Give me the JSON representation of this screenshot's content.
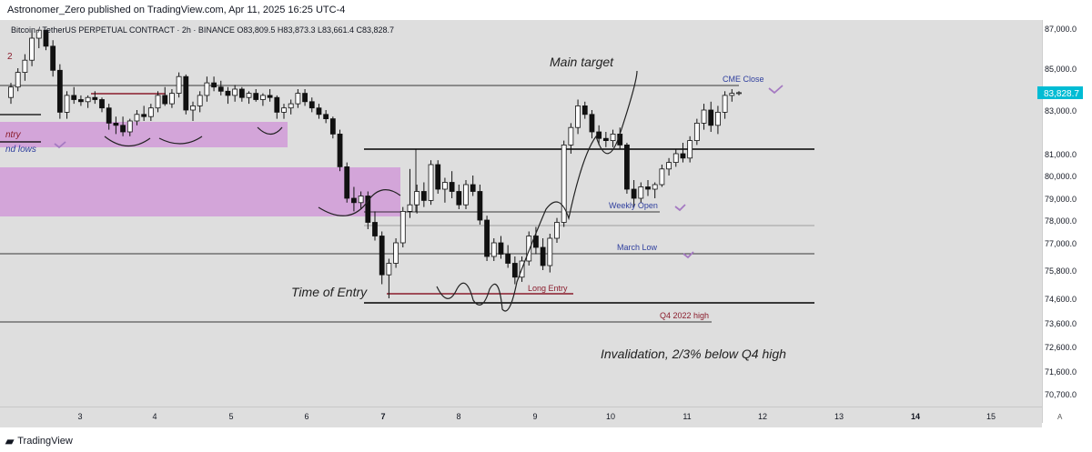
{
  "header": {
    "publisher_line": "Astronomer_Zero published on TradingView.com, Apr 11, 2025 16:25 UTC-4"
  },
  "legend": {
    "text": "Bitcoin / TetherUS PERPETUAL CONTRACT · 2h · BINANCE  O83,809.5  H83,873.3  L83,661.4  C83,828.7"
  },
  "footer": {
    "logo_text": "TradingView"
  },
  "price_axis": {
    "labels": [
      "87,000.0",
      "85,000.0",
      "83,000.0",
      "81,000.0",
      "80,000.0",
      "79,000.0",
      "78,000.0",
      "77,000.0",
      "75,800.0",
      "74,600.0",
      "73,600.0",
      "72,600.0",
      "71,600.0",
      "70,700.0"
    ],
    "last_price_label": "83,828.7",
    "last_price_color": "#00bcd4"
  },
  "time_axis": {
    "labels": [
      "3",
      "4",
      "5",
      "6",
      "7",
      "8",
      "9",
      "10",
      "11",
      "12",
      "13",
      "14",
      "15"
    ],
    "bold": [
      "7",
      "14"
    ],
    "corner_label": "A"
  },
  "annotations": {
    "main_target": "Main target",
    "time_of_entry": "Time of Entry",
    "invalidation": "Invalidation, 2/3% below Q4 high",
    "cme_close": "CME Close",
    "weekly_open": "Weekly Open",
    "march_low": "March Low",
    "long_entry": "Long Entry",
    "q4_high": "Q4 2022 high",
    "entry_cut": "ntry",
    "lows_cut": "nd lows",
    "two_cut": "2"
  },
  "colors": {
    "zone_fill": "#d19bd8",
    "level_line": "#000000",
    "label_blue": "#2f3f9e",
    "label_maroon": "#8a1c2c",
    "check_purple": "#a57ac2",
    "candle": "#111111"
  },
  "chart_data": {
    "type": "candlestick",
    "symbol": "Bitcoin / TetherUS PERPETUAL CONTRACT",
    "timeframe": "2h",
    "exchange": "BINANCE",
    "ohlc": {
      "open": 83809.5,
      "high": 83873.3,
      "low": 83661.4,
      "close": 83828.7
    },
    "x_ticks": [
      "3",
      "4",
      "5",
      "6",
      "7",
      "8",
      "9",
      "10",
      "11",
      "12",
      "13",
      "14",
      "15"
    ],
    "y_ticks": [
      87000,
      85000,
      83000,
      81000,
      80000,
      79000,
      78000,
      77000,
      75800,
      74600,
      73600,
      72600,
      71600,
      70700
    ],
    "levels": [
      {
        "label": "CME Close",
        "price": 84650
      },
      {
        "label": "",
        "price": 81200
      },
      {
        "label": "Weekly Open",
        "price": 78400
      },
      {
        "label": "",
        "price": 77800
      },
      {
        "label": "March Low",
        "price": 76500
      },
      {
        "label": "Long Entry",
        "price": 74800
      },
      {
        "label": "",
        "price": 74600
      },
      {
        "label": "Q4 2022 high",
        "price": 73650
      }
    ],
    "candles": [
      [
        83600,
        84300,
        83300,
        84100
      ],
      [
        84100,
        85000,
        83900,
        84800
      ],
      [
        84800,
        85700,
        84400,
        85400
      ],
      [
        85400,
        86900,
        85100,
        86500
      ],
      [
        86500,
        87500,
        86000,
        87100
      ],
      [
        87100,
        87300,
        85900,
        86100
      ],
      [
        86100,
        86400,
        84600,
        84900
      ],
      [
        84900,
        85200,
        82600,
        82900
      ],
      [
        82900,
        83900,
        82600,
        83700
      ],
      [
        83700,
        84100,
        83300,
        83500
      ],
      [
        83500,
        83700,
        83200,
        83400
      ],
      [
        83400,
        83700,
        83100,
        83600
      ],
      [
        83600,
        83900,
        83300,
        83500
      ],
      [
        83500,
        83600,
        82900,
        83100
      ],
      [
        83100,
        83300,
        82100,
        82400
      ],
      [
        82400,
        82700,
        81900,
        82300
      ],
      [
        82300,
        82700,
        81800,
        82000
      ],
      [
        82000,
        82600,
        81800,
        82500
      ],
      [
        82500,
        83000,
        82300,
        82800
      ],
      [
        82800,
        83200,
        82500,
        82700
      ],
      [
        82700,
        83300,
        82500,
        83100
      ],
      [
        83100,
        83900,
        82900,
        83700
      ],
      [
        83700,
        84100,
        83200,
        83300
      ],
      [
        83300,
        84000,
        83100,
        83800
      ],
      [
        83800,
        84800,
        83600,
        84600
      ],
      [
        84600,
        84700,
        82800,
        83000
      ],
      [
        83000,
        83400,
        82500,
        83200
      ],
      [
        83200,
        83900,
        82900,
        83700
      ],
      [
        83700,
        84600,
        83400,
        84300
      ],
      [
        84300,
        84600,
        83900,
        84100
      ],
      [
        84100,
        84400,
        83700,
        83900
      ],
      [
        83900,
        84100,
        83300,
        83700
      ],
      [
        83700,
        84200,
        83400,
        84000
      ],
      [
        84000,
        84100,
        83400,
        83600
      ],
      [
        83600,
        83900,
        83300,
        83800
      ],
      [
        83800,
        84000,
        83400,
        83500
      ],
      [
        83500,
        83800,
        83200,
        83700
      ],
      [
        83700,
        84000,
        83400,
        83600
      ],
      [
        83600,
        83700,
        82600,
        82900
      ],
      [
        82900,
        83300,
        82600,
        83100
      ],
      [
        83100,
        83500,
        82800,
        83300
      ],
      [
        83300,
        84000,
        83100,
        83800
      ],
      [
        83800,
        84000,
        83200,
        83400
      ],
      [
        83400,
        83600,
        82900,
        83100
      ],
      [
        83100,
        83300,
        82600,
        82800
      ],
      [
        82800,
        83000,
        82400,
        82600
      ],
      [
        82600,
        82700,
        81700,
        81900
      ],
      [
        81900,
        82100,
        80200,
        80400
      ],
      [
        80400,
        80600,
        78800,
        79000
      ],
      [
        79000,
        79500,
        78400,
        78800
      ],
      [
        78800,
        79300,
        78500,
        79100
      ],
      [
        79100,
        79300,
        77600,
        77900
      ],
      [
        77900,
        78400,
        77100,
        77300
      ],
      [
        77300,
        77500,
        75200,
        75600
      ],
      [
        75600,
        76300,
        74600,
        76100
      ],
      [
        76100,
        77200,
        75900,
        77000
      ],
      [
        77000,
        78600,
        76800,
        78400
      ],
      [
        78400,
        80300,
        78100,
        78700
      ],
      [
        78700,
        79600,
        78300,
        79300
      ],
      [
        79300,
        79700,
        78600,
        78900
      ],
      [
        78900,
        80700,
        78700,
        80500
      ],
      [
        80500,
        80700,
        79200,
        79400
      ],
      [
        79400,
        79900,
        78800,
        79700
      ],
      [
        79700,
        80200,
        79000,
        79300
      ],
      [
        79300,
        79600,
        78500,
        78700
      ],
      [
        78700,
        79800,
        78500,
        79600
      ],
      [
        79600,
        80000,
        79100,
        79300
      ],
      [
        79300,
        79600,
        77800,
        78000
      ],
      [
        78000,
        78200,
        76200,
        76400
      ],
      [
        76400,
        77200,
        76200,
        77000
      ],
      [
        77000,
        77300,
        76300,
        76500
      ],
      [
        76500,
        76900,
        75900,
        76100
      ],
      [
        76100,
        76400,
        75200,
        75500
      ],
      [
        75500,
        76400,
        75300,
        76200
      ],
      [
        76200,
        77500,
        76000,
        77300
      ],
      [
        77300,
        77700,
        76500,
        76800
      ],
      [
        76800,
        77200,
        75800,
        76000
      ],
      [
        76000,
        77400,
        75700,
        77200
      ],
      [
        77200,
        78100,
        77000,
        77900
      ],
      [
        77900,
        81600,
        77700,
        81400
      ],
      [
        81400,
        82400,
        81000,
        82200
      ],
      [
        82200,
        83500,
        81900,
        83200
      ],
      [
        83200,
        83400,
        82600,
        82800
      ],
      [
        82800,
        83000,
        81700,
        82000
      ],
      [
        82000,
        82300,
        81400,
        81700
      ],
      [
        81700,
        82000,
        81300,
        81600
      ],
      [
        81600,
        82100,
        81300,
        81900
      ],
      [
        81900,
        82200,
        81200,
        81400
      ],
      [
        81400,
        81500,
        79200,
        79400
      ],
      [
        79400,
        79800,
        78600,
        79000
      ],
      [
        79000,
        79700,
        78800,
        79500
      ],
      [
        79500,
        79800,
        79100,
        79400
      ],
      [
        79400,
        79700,
        79000,
        79600
      ],
      [
        79600,
        80500,
        79500,
        80300
      ],
      [
        80300,
        80800,
        80000,
        80600
      ],
      [
        80600,
        81200,
        80400,
        81000
      ],
      [
        81000,
        81500,
        80600,
        80800
      ],
      [
        80800,
        81800,
        80600,
        81600
      ],
      [
        81600,
        82600,
        81400,
        82400
      ],
      [
        82400,
        83300,
        82100,
        83000
      ],
      [
        83000,
        83400,
        82000,
        82300
      ],
      [
        82300,
        83200,
        81900,
        82900
      ],
      [
        82900,
        83900,
        82600,
        83700
      ],
      [
        83700,
        84000,
        83400,
        83800
      ],
      [
        83800,
        83900,
        83700,
        83830
      ]
    ]
  }
}
